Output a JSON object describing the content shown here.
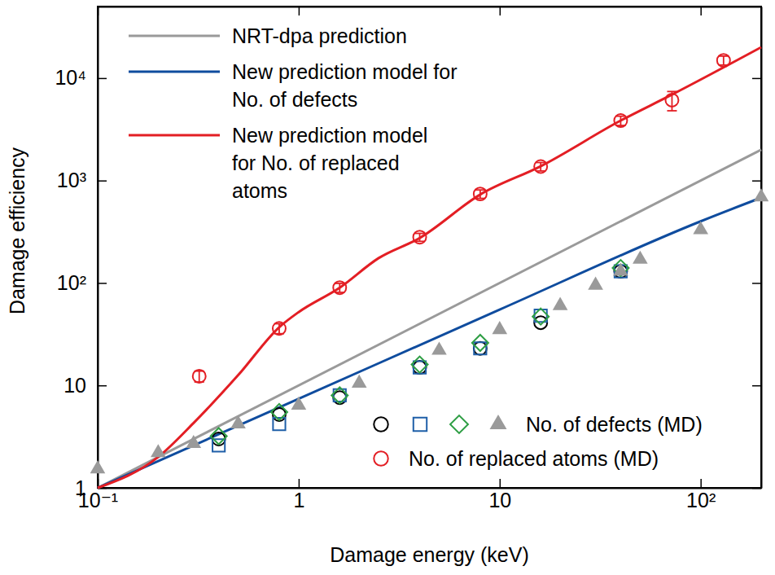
{
  "chart_data": {
    "type": "line",
    "x_label": "Damage energy (keV)",
    "y_label": "Damage efficiency",
    "log": true,
    "xlim": [
      0.1,
      200
    ],
    "ylim": [
      1,
      50000
    ],
    "xticks": [
      {
        "value": 0.1,
        "label": "10⁻¹"
      },
      1,
      10,
      {
        "value": 100,
        "label": "10²"
      }
    ],
    "yticks": [
      1,
      10,
      {
        "value": 100,
        "label": "10²"
      },
      {
        "value": 1000,
        "label": "10³"
      },
      {
        "value": 10000,
        "label": "10⁴"
      }
    ],
    "legend": "top-left",
    "series": [
      {
        "name": "NRT-dpa prediction",
        "type": "line",
        "color": "#9a9a9a",
        "line_style": "solid",
        "x": [
          0.1,
          200
        ],
        "values": [
          1,
          2000
        ]
      },
      {
        "name": "New prediction model for\nNo. of defects",
        "type": "line",
        "color": "#0f4c9e",
        "line_style": "solid",
        "x": [
          0.1,
          1,
          10,
          100,
          200
        ],
        "values": [
          1,
          7.4,
          55,
          400,
          680
        ]
      },
      {
        "name": "New prediction model\nfor No. of replaced\natoms",
        "type": "line",
        "color": "#e31e24",
        "line_style": "solid",
        "x": [
          0.1,
          0.2,
          0.3,
          0.5,
          0.8,
          1,
          1.6,
          2.5,
          4,
          8,
          16,
          40,
          72,
          200
        ],
        "values": [
          1,
          2.0,
          4.3,
          12.6,
          37,
          52,
          90,
          175,
          275,
          730,
          1380,
          3850,
          6900,
          20000
        ]
      },
      {
        "name": "No. of defects (MD)",
        "type": "scatter",
        "color": "#000000",
        "marker": "circle",
        "x": [
          0.4,
          0.8,
          1.6,
          4,
          8,
          16,
          40
        ],
        "values": [
          3.0,
          5.2,
          7.6,
          15,
          23,
          41,
          130
        ]
      },
      {
        "name": "No. of defects (MD)",
        "type": "scatter",
        "color": "#1f5fa8",
        "marker": "square",
        "x": [
          0.4,
          0.8,
          1.6,
          4,
          8,
          16,
          40
        ],
        "values": [
          2.6,
          4.2,
          8.0,
          15,
          23,
          48,
          130
        ]
      },
      {
        "name": "No. of defects (MD)",
        "type": "scatter",
        "color": "#2e9e44",
        "marker": "diamond",
        "x": [
          0.4,
          0.8,
          1.6,
          4,
          8,
          16,
          40
        ],
        "values": [
          3.2,
          5.5,
          8.0,
          16,
          26,
          47,
          140
        ]
      },
      {
        "name": "No. of defects (MD)",
        "type": "scatter",
        "color": "#9a9a9a",
        "marker": "triangle",
        "x": [
          0.1,
          0.2,
          0.3,
          0.5,
          1,
          2,
          5,
          10,
          20,
          30,
          40,
          50,
          100,
          200
        ],
        "values": [
          1.53,
          2.2,
          2.7,
          4.2,
          6.4,
          10.5,
          22,
          35,
          60,
          95,
          130,
          170,
          330,
          690
        ]
      },
      {
        "name": "No. of replaced atoms (MD)",
        "type": "scatter",
        "color": "#e31e24",
        "marker": "circle",
        "x": [
          0.32,
          0.8,
          1.6,
          4,
          8,
          16,
          40,
          72,
          130
        ],
        "values": [
          12.3,
          36,
          90,
          280,
          740,
          1370,
          3850,
          6100,
          14900
        ],
        "errors": [
          1.5,
          4,
          9,
          25,
          70,
          130,
          400,
          1300,
          1500
        ]
      }
    ]
  }
}
